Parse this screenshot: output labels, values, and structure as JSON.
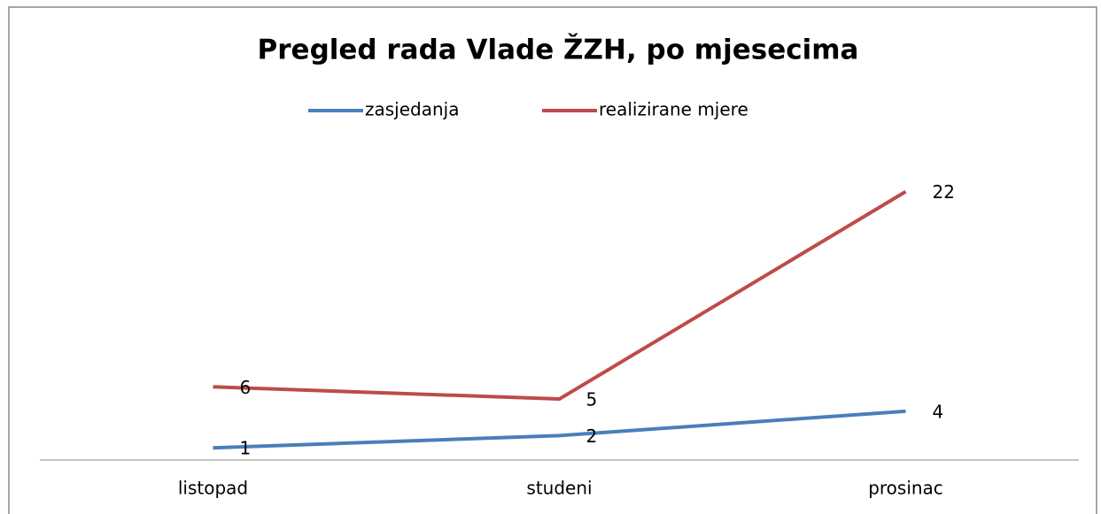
{
  "chart_data": {
    "type": "line",
    "title": "Pregled rada Vlade ŽZH, po mjesecima",
    "categories": [
      "listopad",
      "studeni",
      "prosinac"
    ],
    "series": [
      {
        "name": "zasjedanja",
        "color": "#4a7ebb",
        "values": [
          1,
          2,
          4
        ]
      },
      {
        "name": "realizirane mjere",
        "color": "#be4b48",
        "values": [
          6,
          5,
          22
        ]
      }
    ],
    "ylim": [
      0,
      24
    ],
    "legend": "top"
  }
}
